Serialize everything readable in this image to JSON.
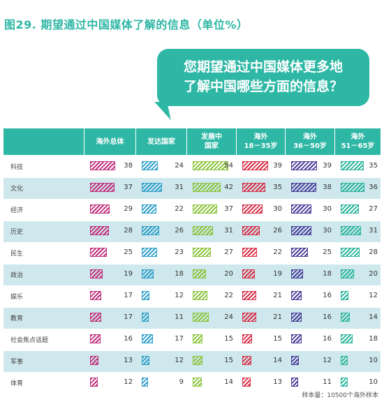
{
  "title": "图29. 期望通过中国媒体了解的信息（单位%）",
  "bubble": {
    "line1": "您期望通过中国媒体更多地",
    "line2": "了解中国哪些方面的信息？"
  },
  "footnote": "样本量：10500个海外样本",
  "chart_data": {
    "type": "bar",
    "columns": [
      {
        "line1": "海外总体",
        "line2": ""
      },
      {
        "line1": "发达国家",
        "line2": ""
      },
      {
        "line1": "发展中",
        "line2": "国家"
      },
      {
        "line1": "海外",
        "line2": "18－35岁"
      },
      {
        "line1": "海外",
        "line2": "36－50岁"
      },
      {
        "line1": "海外",
        "line2": "51－65岁"
      }
    ],
    "categories": [
      "科技",
      "文化",
      "经济",
      "历史",
      "民生",
      "政治",
      "娱乐",
      "教育",
      "社会焦点话题",
      "军事",
      "体育"
    ],
    "series": [
      {
        "name": "海外总体",
        "color": "#c2307c",
        "values": [
          38,
          37,
          29,
          28,
          25,
          19,
          17,
          17,
          16,
          13,
          12
        ]
      },
      {
        "name": "发达国家",
        "color": "#2fa0c9",
        "values": [
          24,
          31,
          22,
          26,
          23,
          18,
          12,
          11,
          17,
          12,
          9
        ]
      },
      {
        "name": "发展中国家",
        "color": "#8cc43c",
        "values": [
          54,
          42,
          37,
          31,
          27,
          20,
          22,
          24,
          15,
          15,
          14
        ]
      },
      {
        "name": "海外18－35岁",
        "color": "#d8324a",
        "values": [
          39,
          35,
          30,
          26,
          22,
          19,
          21,
          21,
          15,
          14,
          13
        ]
      },
      {
        "name": "海外36－50岁",
        "color": "#4b3f9a",
        "values": [
          39,
          38,
          30,
          30,
          25,
          18,
          16,
          16,
          16,
          12,
          11
        ]
      },
      {
        "name": "海外51－65岁",
        "color": "#2bb59c",
        "values": [
          35,
          36,
          27,
          31,
          28,
          20,
          12,
          14,
          18,
          10,
          10
        ]
      }
    ]
  }
}
